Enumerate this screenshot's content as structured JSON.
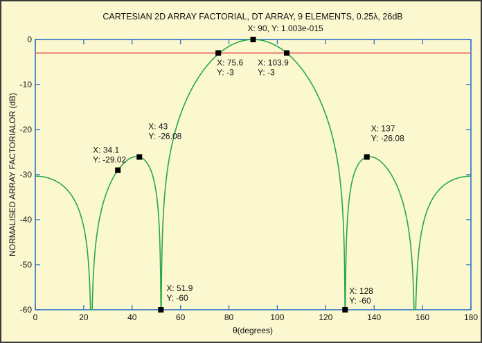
{
  "chart_data": {
    "type": "line",
    "title": "CARTESIAN 2D ARRAY FACTORIAL, DT ARRAY, 9 ELEMENTS, 0.25λ, 26dB",
    "xlabel": "θ(degrees)",
    "ylabel": "NORMALISED ARRAY FACTORIALOR (dB)",
    "xlim": [
      0,
      180
    ],
    "ylim": [
      -60,
      0
    ],
    "xticks": [
      0,
      20,
      40,
      60,
      80,
      100,
      120,
      140,
      160,
      180
    ],
    "yticks": [
      0,
      -10,
      -20,
      -30,
      -40,
      -50,
      -60
    ],
    "grid": false,
    "array": {
      "elements": 9,
      "spacing_wavelengths": 0.25,
      "sidelobe_db": 26
    },
    "series": [
      {
        "color": "#27a84a",
        "floor_db": -60,
        "sample_points": [
          [
            0,
            -30.4
          ],
          [
            23.4,
            -60
          ],
          [
            34.1,
            -29.02
          ],
          [
            43,
            -26.08
          ],
          [
            51.9,
            -60
          ],
          [
            75.6,
            -3
          ],
          [
            90,
            0
          ],
          [
            103.9,
            -3
          ],
          [
            128,
            -60
          ],
          [
            137,
            -26.08
          ],
          [
            156.6,
            -60
          ],
          [
            180,
            -30.4
          ]
        ]
      },
      {
        "color": "#e8453c",
        "constant_y": -3
      }
    ],
    "datatips": [
      {
        "x": 34.1,
        "y": -29.02,
        "lines": [
          "X: 34.1",
          "Y: -29.02"
        ]
      },
      {
        "x": 43,
        "y": -26.08,
        "lines": [
          "X: 43",
          "Y: -26.08"
        ]
      },
      {
        "x": 51.9,
        "y": -60,
        "lines": [
          "X: 51.9",
          "Y: -60"
        ]
      },
      {
        "x": 75.6,
        "y": -3,
        "lines": [
          "X: 75.6",
          "Y: -3"
        ]
      },
      {
        "x": 90,
        "y": 0,
        "lines": [
          "X: 90, Y: 1.003e-015"
        ]
      },
      {
        "x": 103.9,
        "y": -3,
        "lines": [
          "X: 103.9",
          "Y: -3"
        ]
      },
      {
        "x": 128,
        "y": -60,
        "lines": [
          "X: 128",
          "Y: -60"
        ]
      },
      {
        "x": 137,
        "y": -26.08,
        "lines": [
          "X: 137",
          "Y: -26.08"
        ]
      }
    ],
    "axis_color": "#2a6fc4"
  }
}
